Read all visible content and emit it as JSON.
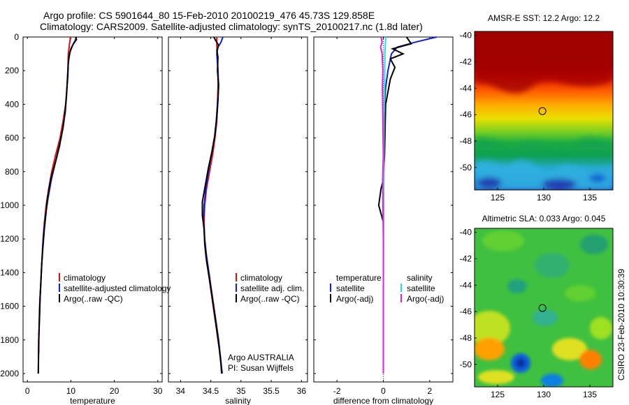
{
  "header": {
    "line1": "Argo profile: CS 5901644_80 15-Feb-2010 20100219_476 45.73S 129.858E",
    "line2": "Climatology: CARS2009. Satellite-adjusted climatology: synTS_20100217.nc (1.8d later)"
  },
  "colors": {
    "climatology": "#e01010",
    "satellite": "#1020e0",
    "argo": "#000000",
    "sal_satellite": "#20e0e0",
    "sal_argo": "#e020e0"
  },
  "chart_data": [
    {
      "type": "line",
      "xlabel": "temperature",
      "ylabel": "",
      "xlim": [
        -1,
        31
      ],
      "ylim": [
        2050,
        0
      ],
      "xticks": [
        0,
        10,
        20,
        30
      ],
      "yticks": [
        0,
        200,
        400,
        600,
        800,
        1000,
        1200,
        1400,
        1600,
        1800,
        2000
      ],
      "legend": [
        "climatology",
        "satellite-adjusted climatology",
        "Argo(..raw -QC)"
      ],
      "legend_position": "bottom-right",
      "series": [
        {
          "name": "climatology",
          "color": "#e01010",
          "points": [
            [
              9.9,
              0
            ],
            [
              9.7,
              40
            ],
            [
              9.4,
              100
            ],
            [
              9.3,
              200
            ],
            [
              9.1,
              300
            ],
            [
              8.8,
              400
            ],
            [
              8.2,
              500
            ],
            [
              7.5,
              600
            ],
            [
              6.5,
              700
            ],
            [
              5.6,
              800
            ],
            [
              4.9,
              900
            ],
            [
              4.3,
              1000
            ],
            [
              3.9,
              1100
            ],
            [
              3.6,
              1200
            ],
            [
              3.4,
              1300
            ],
            [
              3.2,
              1400
            ],
            [
              3.0,
              1500
            ],
            [
              2.8,
              1600
            ],
            [
              2.7,
              1700
            ],
            [
              2.6,
              1880
            ]
          ]
        },
        {
          "name": "satellite-adjusted climatology",
          "color": "#1020e0",
          "points": [
            [
              11.3,
              0
            ],
            [
              11.0,
              20
            ],
            [
              10.4,
              50
            ],
            [
              9.8,
              90
            ],
            [
              9.4,
              150
            ],
            [
              9.2,
              250
            ],
            [
              9.0,
              350
            ],
            [
              8.7,
              450
            ],
            [
              8.1,
              550
            ],
            [
              7.4,
              650
            ],
            [
              6.4,
              750
            ],
            [
              5.5,
              850
            ],
            [
              4.8,
              950
            ],
            [
              4.2,
              1050
            ],
            [
              3.8,
              1150
            ],
            [
              3.5,
              1250
            ],
            [
              3.3,
              1350
            ],
            [
              3.1,
              1450
            ],
            [
              2.9,
              1550
            ],
            [
              2.8,
              1650
            ],
            [
              2.6,
              1800
            ],
            [
              2.5,
              2000
            ]
          ]
        },
        {
          "name": "Argo(..raw -QC)",
          "color": "#000000",
          "points": [
            [
              11.1,
              0
            ],
            [
              11.3,
              15
            ],
            [
              10.6,
              40
            ],
            [
              10.0,
              70
            ],
            [
              9.6,
              110
            ],
            [
              9.4,
              160
            ],
            [
              9.3,
              230
            ],
            [
              9.0,
              340
            ],
            [
              8.7,
              440
            ],
            [
              8.2,
              540
            ],
            [
              7.3,
              650
            ],
            [
              6.5,
              740
            ],
            [
              5.4,
              840
            ],
            [
              4.6,
              960
            ],
            [
              4.3,
              1040
            ],
            [
              3.9,
              1140
            ],
            [
              3.6,
              1240
            ],
            [
              3.3,
              1350
            ],
            [
              3.1,
              1460
            ],
            [
              2.9,
              1560
            ],
            [
              2.8,
              1660
            ],
            [
              2.6,
              1800
            ],
            [
              2.5,
              2000
            ]
          ]
        }
      ]
    },
    {
      "type": "line",
      "xlabel": "salinity",
      "ylabel": "",
      "xlim": [
        33.8,
        36.1
      ],
      "ylim": [
        2050,
        0
      ],
      "xticks": [
        34,
        34.5,
        35,
        35.5,
        36
      ],
      "yticks": [
        0,
        200,
        400,
        600,
        800,
        1000,
        1200,
        1400,
        1600,
        1800,
        2000
      ],
      "legend": [
        "climatology",
        "satellite adj. clim.",
        "Argo(..raw -QC)"
      ],
      "legend_position": "bottom-right",
      "annotations": [
        "Argo AUSTRALIA",
        "PI: Susan Wijffels"
      ],
      "series": [
        {
          "name": "climatology",
          "color": "#e01010",
          "points": [
            [
              34.6,
              0
            ],
            [
              34.6,
              50
            ],
            [
              34.61,
              100
            ],
            [
              34.62,
              200
            ],
            [
              34.62,
              300
            ],
            [
              34.61,
              400
            ],
            [
              34.6,
              500
            ],
            [
              34.57,
              600
            ],
            [
              34.53,
              700
            ],
            [
              34.48,
              800
            ],
            [
              34.43,
              900
            ],
            [
              34.4,
              1000
            ],
            [
              34.39,
              1100
            ],
            [
              34.4,
              1200
            ],
            [
              34.42,
              1300
            ],
            [
              34.46,
              1400
            ],
            [
              34.5,
              1500
            ],
            [
              34.54,
              1600
            ],
            [
              34.58,
              1700
            ],
            [
              34.62,
              1800
            ],
            [
              34.66,
              1900
            ],
            [
              34.68,
              1990
            ]
          ]
        },
        {
          "name": "satellite adj. clim.",
          "color": "#1020e0",
          "points": [
            [
              34.7,
              0
            ],
            [
              34.67,
              30
            ],
            [
              34.62,
              60
            ],
            [
              34.6,
              100
            ],
            [
              34.62,
              200
            ],
            [
              34.63,
              300
            ],
            [
              34.61,
              400
            ],
            [
              34.59,
              500
            ],
            [
              34.56,
              600
            ],
            [
              34.51,
              700
            ],
            [
              34.46,
              800
            ],
            [
              34.42,
              900
            ],
            [
              34.39,
              1000
            ],
            [
              34.38,
              1100
            ],
            [
              34.4,
              1200
            ],
            [
              34.43,
              1300
            ],
            [
              34.47,
              1400
            ],
            [
              34.51,
              1500
            ],
            [
              34.55,
              1600
            ],
            [
              34.59,
              1700
            ],
            [
              34.63,
              1800
            ],
            [
              34.66,
              1900
            ],
            [
              34.69,
              2000
            ]
          ]
        },
        {
          "name": "Argo(..raw -QC)",
          "color": "#000000",
          "points": [
            [
              34.55,
              0
            ],
            [
              34.58,
              20
            ],
            [
              34.63,
              50
            ],
            [
              34.6,
              80
            ],
            [
              34.62,
              120
            ],
            [
              34.61,
              200
            ],
            [
              34.63,
              280
            ],
            [
              34.62,
              380
            ],
            [
              34.6,
              480
            ],
            [
              34.57,
              580
            ],
            [
              34.52,
              680
            ],
            [
              34.46,
              780
            ],
            [
              34.41,
              880
            ],
            [
              34.36,
              980
            ],
            [
              34.36,
              1060
            ],
            [
              34.39,
              1140
            ],
            [
              34.4,
              1230
            ],
            [
              34.43,
              1330
            ],
            [
              34.48,
              1440
            ],
            [
              34.52,
              1540
            ],
            [
              34.56,
              1640
            ],
            [
              34.6,
              1740
            ],
            [
              34.64,
              1850
            ],
            [
              34.67,
              1950
            ],
            [
              34.68,
              2000
            ]
          ]
        }
      ]
    },
    {
      "type": "line",
      "xlabel": "difference from climatology",
      "ylabel": "",
      "xlim": [
        -3,
        3
      ],
      "ylim": [
        2050,
        0
      ],
      "xticks": [
        -2,
        0,
        2
      ],
      "yticks": [
        0,
        200,
        400,
        600,
        800,
        1000,
        1200,
        1400,
        1600,
        1800,
        2000
      ],
      "legend_left_title": "temperature",
      "legend_left": [
        "satellite",
        "Argo(-adj)"
      ],
      "legend_right_title": "salinity",
      "legend_right": [
        "satellite",
        "Argo(-adj)"
      ],
      "legend_position": "center",
      "series": [
        {
          "name": "satellite",
          "color": "#1020e0",
          "points": [
            [
              2.3,
              0
            ],
            [
              1.4,
              30
            ],
            [
              0.6,
              60
            ],
            [
              0.35,
              100
            ],
            [
              0.2,
              200
            ],
            [
              0.1,
              300
            ],
            [
              0.05,
              400
            ],
            [
              0.03,
              600
            ],
            [
              0.02,
              800
            ],
            [
              0.01,
              1000
            ],
            [
              0.0,
              1200
            ],
            [
              0.0,
              1600
            ],
            [
              0.0,
              2000
            ]
          ]
        },
        {
          "name": "Argo(-adj)",
          "color": "#000000",
          "points": [
            [
              1.0,
              0
            ],
            [
              1.2,
              40
            ],
            [
              0.4,
              70
            ],
            [
              0.85,
              100
            ],
            [
              0.3,
              130
            ],
            [
              0.5,
              180
            ],
            [
              0.3,
              250
            ],
            [
              0.1,
              400
            ],
            [
              0.05,
              700
            ],
            [
              0.0,
              850
            ],
            [
              -0.1,
              900
            ],
            [
              -0.2,
              1000
            ],
            [
              -0.1,
              1050
            ],
            [
              0.0,
              1100
            ],
            [
              0.0,
              2000
            ]
          ]
        },
        {
          "name": "satellite",
          "color": "#20e0e0",
          "points": [
            [
              0.1,
              0
            ],
            [
              0.07,
              100
            ],
            [
              0.05,
              300
            ],
            [
              0.03,
              500
            ],
            [
              0.02,
              800
            ],
            [
              0.01,
              1000
            ],
            [
              0.0,
              1500
            ],
            [
              0.0,
              2000
            ]
          ]
        },
        {
          "name": "Argo(-adj)",
          "color": "#e020e0",
          "points": [
            [
              -0.1,
              0
            ],
            [
              -0.05,
              30
            ],
            [
              -0.12,
              60
            ],
            [
              -0.05,
              100
            ],
            [
              -0.02,
              200
            ],
            [
              -0.04,
              300
            ],
            [
              -0.02,
              500
            ],
            [
              0.0,
              700
            ],
            [
              -0.03,
              850
            ],
            [
              -0.02,
              1000
            ],
            [
              0.0,
              1200
            ],
            [
              0.0,
              2000
            ]
          ]
        }
      ]
    },
    {
      "type": "heatmap",
      "title": "AMSR-E SST: 12.2 Argo: 12.2",
      "xlim": [
        122.5,
        137.5
      ],
      "ylim": [
        -51.7,
        -39.7
      ],
      "xticks": [
        125,
        130,
        135
      ],
      "yticks": [
        -40,
        -42,
        -44,
        -46,
        -48,
        -50
      ],
      "marker": {
        "lon": 129.858,
        "lat": -45.73
      }
    },
    {
      "type": "heatmap",
      "title": "Altimetric SLA: 0.033 Argo: 0.045",
      "xlim": [
        122.5,
        137.5
      ],
      "ylim": [
        -51.7,
        -39.7
      ],
      "xticks": [
        125,
        130,
        135
      ],
      "yticks": [
        -40,
        -42,
        -44,
        -46,
        -48,
        -50
      ],
      "marker": {
        "lon": 129.858,
        "lat": -45.73
      }
    }
  ],
  "footer": {
    "stamp": "CSIRO 23-Feb-2010 10:30:39"
  }
}
